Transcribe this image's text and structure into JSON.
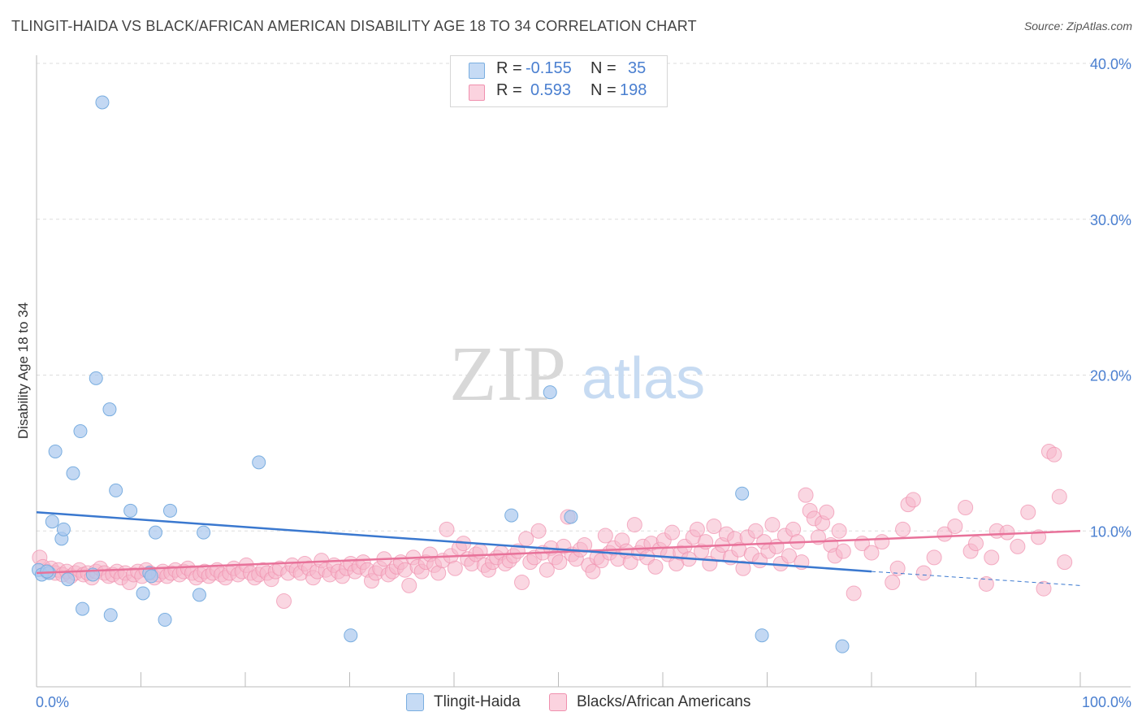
{
  "header": {
    "title": "TLINGIT-HAIDA VS BLACK/AFRICAN AMERICAN DISABILITY AGE 18 TO 34 CORRELATION CHART",
    "source": "Source: ZipAtlas.com"
  },
  "legend": {
    "rows": [
      {
        "r_label": "R =",
        "r_value": "-0.155",
        "n_label": "N =",
        "n_value": "35"
      },
      {
        "r_label": "R =",
        "r_value": "0.593",
        "n_label": "N =",
        "n_value": "198"
      }
    ]
  },
  "bottom_legend": {
    "series1": "Tlingit-Haida",
    "series2": "Blacks/African Americans"
  },
  "watermark": {
    "zip": "ZIP",
    "atlas": "atlas"
  },
  "colors": {
    "blue_fill": "#a9c8ee",
    "blue_stroke": "#7aaee0",
    "blue_line": "#3a78cf",
    "pink_fill": "#f6b7ca",
    "pink_stroke": "#f090ae",
    "pink_line": "#e8729a",
    "value_text": "#4a7fd0",
    "axis_text": "#4a7fd0"
  },
  "chart_data": {
    "type": "scatter",
    "title": "TLINGIT-HAIDA VS BLACK/AFRICAN AMERICAN DISABILITY AGE 18 TO 34 CORRELATION CHART",
    "ylabel": "Disability Age 18 to 34",
    "xlabel": "",
    "xlim": [
      0,
      100
    ],
    "ylim": [
      0,
      40
    ],
    "x_tick_labels": [
      "0.0%",
      "100.0%"
    ],
    "y_tick_labels": [
      "10.0%",
      "20.0%",
      "30.0%",
      "40.0%"
    ],
    "y_ticks": [
      10,
      20,
      30,
      40
    ],
    "grid": true,
    "series": [
      {
        "name": "Tlingit-Haida",
        "r": -0.155,
        "n": 35,
        "trend": {
          "x0": 0,
          "y0": 11.2,
          "x1": 80,
          "y1": 7.4,
          "dash_to_x": 100,
          "dash_to_y": 6.5
        },
        "points": [
          [
            0.2,
            7.5
          ],
          [
            0.5,
            7.2
          ],
          [
            1.2,
            7.3
          ],
          [
            1.5,
            10.6
          ],
          [
            1.8,
            15.1
          ],
          [
            2.4,
            9.5
          ],
          [
            2.6,
            10.1
          ],
          [
            3.0,
            6.9
          ],
          [
            3.5,
            13.7
          ],
          [
            4.2,
            16.4
          ],
          [
            4.4,
            5.0
          ],
          [
            5.4,
            7.2
          ],
          [
            5.7,
            19.8
          ],
          [
            6.3,
            37.5
          ],
          [
            7.0,
            17.8
          ],
          [
            7.1,
            4.6
          ],
          [
            7.6,
            12.6
          ],
          [
            9.0,
            11.3
          ],
          [
            10.2,
            6.0
          ],
          [
            10.8,
            7.3
          ],
          [
            11.0,
            7.1
          ],
          [
            11.4,
            9.9
          ],
          [
            12.3,
            4.3
          ],
          [
            12.8,
            11.3
          ],
          [
            15.6,
            5.9
          ],
          [
            16.0,
            9.9
          ],
          [
            21.3,
            14.4
          ],
          [
            30.1,
            3.3
          ],
          [
            45.5,
            11.0
          ],
          [
            49.2,
            18.9
          ],
          [
            51.2,
            10.9
          ],
          [
            67.6,
            12.4
          ],
          [
            69.5,
            3.3
          ],
          [
            77.2,
            2.6
          ],
          [
            1.0,
            7.4
          ]
        ]
      },
      {
        "name": "Blacks/African Americans",
        "r": 0.593,
        "n": 198,
        "trend": {
          "x0": 0,
          "y0": 7.3,
          "x1": 100,
          "y1": 10.0
        },
        "points": [
          [
            0.3,
            8.3
          ],
          [
            0.6,
            7.7
          ],
          [
            1.0,
            7.4
          ],
          [
            1.4,
            7.6
          ],
          [
            1.8,
            7.3
          ],
          [
            2.1,
            7.5
          ],
          [
            2.5,
            7.2
          ],
          [
            2.9,
            7.4
          ],
          [
            3.3,
            7.1
          ],
          [
            3.7,
            7.3
          ],
          [
            4.1,
            7.5
          ],
          [
            4.5,
            7.2
          ],
          [
            4.9,
            7.3
          ],
          [
            5.3,
            7.0
          ],
          [
            5.7,
            7.4
          ],
          [
            6.1,
            7.6
          ],
          [
            6.5,
            7.3
          ],
          [
            6.9,
            7.1
          ],
          [
            7.3,
            7.2
          ],
          [
            7.7,
            7.4
          ],
          [
            8.1,
            7.0
          ],
          [
            8.5,
            7.3
          ],
          [
            8.9,
            6.7
          ],
          [
            9.3,
            7.2
          ],
          [
            9.7,
            7.4
          ],
          [
            10.1,
            7.1
          ],
          [
            10.5,
            7.5
          ],
          [
            10.9,
            7.3
          ],
          [
            11.3,
            7.0
          ],
          [
            11.7,
            7.2
          ],
          [
            12.1,
            7.4
          ],
          [
            12.5,
            7.1
          ],
          [
            12.9,
            7.3
          ],
          [
            13.3,
            7.5
          ],
          [
            13.7,
            7.2
          ],
          [
            14.1,
            7.4
          ],
          [
            14.5,
            7.6
          ],
          [
            14.9,
            7.3
          ],
          [
            15.3,
            7.0
          ],
          [
            15.7,
            7.2
          ],
          [
            16.1,
            7.4
          ],
          [
            16.5,
            7.1
          ],
          [
            16.9,
            7.3
          ],
          [
            17.3,
            7.5
          ],
          [
            17.7,
            7.2
          ],
          [
            18.1,
            7.0
          ],
          [
            18.5,
            7.3
          ],
          [
            18.9,
            7.6
          ],
          [
            19.3,
            7.2
          ],
          [
            19.7,
            7.4
          ],
          [
            20.1,
            7.8
          ],
          [
            20.5,
            7.3
          ],
          [
            20.9,
            7.0
          ],
          [
            21.3,
            7.2
          ],
          [
            21.7,
            7.5
          ],
          [
            22.1,
            7.3
          ],
          [
            22.5,
            6.9
          ],
          [
            22.9,
            7.4
          ],
          [
            23.3,
            7.6
          ],
          [
            23.7,
            5.5
          ],
          [
            24.1,
            7.3
          ],
          [
            24.5,
            7.8
          ],
          [
            24.9,
            7.5
          ],
          [
            25.3,
            7.3
          ],
          [
            25.7,
            7.9
          ],
          [
            26.1,
            7.6
          ],
          [
            26.5,
            7.0
          ],
          [
            26.9,
            7.4
          ],
          [
            27.3,
            8.1
          ],
          [
            27.7,
            7.5
          ],
          [
            28.1,
            7.2
          ],
          [
            28.5,
            7.8
          ],
          [
            28.9,
            7.4
          ],
          [
            29.3,
            7.1
          ],
          [
            29.7,
            7.6
          ],
          [
            30.1,
            7.9
          ],
          [
            30.5,
            7.4
          ],
          [
            30.9,
            7.7
          ],
          [
            31.3,
            8.0
          ],
          [
            31.7,
            7.5
          ],
          [
            32.1,
            6.8
          ],
          [
            32.5,
            7.3
          ],
          [
            32.9,
            7.6
          ],
          [
            33.3,
            8.2
          ],
          [
            33.7,
            7.2
          ],
          [
            34.1,
            7.4
          ],
          [
            34.5,
            7.7
          ],
          [
            34.9,
            8.0
          ],
          [
            35.3,
            7.5
          ],
          [
            35.7,
            6.5
          ],
          [
            36.1,
            8.3
          ],
          [
            36.5,
            7.7
          ],
          [
            36.9,
            7.4
          ],
          [
            37.3,
            8.0
          ],
          [
            37.7,
            8.5
          ],
          [
            38.1,
            7.8
          ],
          [
            38.5,
            7.3
          ],
          [
            38.9,
            8.1
          ],
          [
            39.3,
            10.1
          ],
          [
            39.7,
            8.4
          ],
          [
            40.1,
            7.6
          ],
          [
            40.5,
            8.9
          ],
          [
            40.9,
            9.2
          ],
          [
            41.3,
            8.2
          ],
          [
            41.7,
            7.9
          ],
          [
            42.1,
            8.5
          ],
          [
            42.5,
            8.7
          ],
          [
            42.9,
            7.8
          ],
          [
            43.3,
            7.5
          ],
          [
            43.7,
            8.0
          ],
          [
            44.1,
            8.3
          ],
          [
            44.5,
            8.6
          ],
          [
            44.9,
            7.9
          ],
          [
            45.3,
            8.1
          ],
          [
            45.7,
            8.4
          ],
          [
            46.1,
            8.7
          ],
          [
            46.5,
            6.7
          ],
          [
            46.9,
            9.5
          ],
          [
            47.3,
            8.0
          ],
          [
            47.7,
            8.3
          ],
          [
            48.1,
            10.0
          ],
          [
            48.5,
            8.6
          ],
          [
            48.9,
            7.5
          ],
          [
            49.3,
            8.9
          ],
          [
            49.7,
            8.3
          ],
          [
            50.1,
            8.0
          ],
          [
            50.5,
            9.0
          ],
          [
            50.9,
            10.9
          ],
          [
            51.3,
            8.5
          ],
          [
            51.7,
            8.2
          ],
          [
            52.1,
            8.8
          ],
          [
            52.5,
            9.1
          ],
          [
            52.9,
            7.8
          ],
          [
            53.3,
            7.4
          ],
          [
            53.7,
            8.3
          ],
          [
            54.1,
            8.1
          ],
          [
            54.5,
            9.7
          ],
          [
            54.9,
            8.6
          ],
          [
            55.3,
            8.9
          ],
          [
            55.7,
            8.2
          ],
          [
            56.1,
            9.4
          ],
          [
            56.5,
            8.7
          ],
          [
            56.9,
            8.0
          ],
          [
            57.3,
            10.4
          ],
          [
            57.7,
            8.6
          ],
          [
            58.1,
            9.0
          ],
          [
            58.5,
            8.3
          ],
          [
            58.9,
            9.2
          ],
          [
            59.3,
            7.7
          ],
          [
            59.7,
            8.8
          ],
          [
            60.1,
            9.4
          ],
          [
            60.5,
            8.5
          ],
          [
            60.9,
            9.9
          ],
          [
            61.3,
            7.9
          ],
          [
            61.7,
            8.6
          ],
          [
            62.1,
            9.0
          ],
          [
            62.5,
            8.2
          ],
          [
            62.9,
            9.6
          ],
          [
            63.3,
            10.1
          ],
          [
            63.7,
            8.7
          ],
          [
            64.1,
            9.3
          ],
          [
            64.5,
            7.9
          ],
          [
            64.9,
            10.3
          ],
          [
            65.3,
            8.5
          ],
          [
            65.7,
            9.1
          ],
          [
            66.1,
            9.8
          ],
          [
            66.5,
            8.3
          ],
          [
            66.9,
            9.5
          ],
          [
            67.3,
            8.8
          ],
          [
            67.7,
            7.6
          ],
          [
            68.1,
            9.6
          ],
          [
            68.5,
            8.5
          ],
          [
            68.9,
            10.0
          ],
          [
            69.3,
            8.1
          ],
          [
            69.7,
            9.3
          ],
          [
            70.1,
            8.7
          ],
          [
            70.5,
            10.4
          ],
          [
            70.9,
            9.0
          ],
          [
            71.3,
            7.9
          ],
          [
            71.7,
            9.7
          ],
          [
            72.1,
            8.4
          ],
          [
            72.5,
            10.1
          ],
          [
            72.9,
            9.3
          ],
          [
            73.3,
            8.0
          ],
          [
            73.7,
            12.3
          ],
          [
            74.1,
            11.3
          ],
          [
            74.5,
            10.8
          ],
          [
            74.9,
            9.6
          ],
          [
            75.3,
            10.5
          ],
          [
            75.7,
            11.2
          ],
          [
            76.1,
            9.1
          ],
          [
            76.5,
            8.4
          ],
          [
            76.9,
            10.0
          ],
          [
            77.3,
            8.7
          ],
          [
            78.3,
            6.0
          ],
          [
            79.1,
            9.2
          ],
          [
            80.0,
            8.6
          ],
          [
            81.0,
            9.3
          ],
          [
            82.0,
            6.7
          ],
          [
            82.5,
            7.6
          ],
          [
            83.0,
            10.1
          ],
          [
            83.5,
            11.7
          ],
          [
            84.0,
            12.0
          ],
          [
            85.0,
            7.3
          ],
          [
            86.0,
            8.3
          ],
          [
            87.0,
            9.8
          ],
          [
            88.0,
            10.3
          ],
          [
            89.0,
            11.5
          ],
          [
            89.5,
            8.7
          ],
          [
            90.0,
            9.2
          ],
          [
            91.0,
            6.6
          ],
          [
            91.5,
            8.3
          ],
          [
            92.0,
            10.0
          ],
          [
            93.0,
            9.9
          ],
          [
            94.0,
            9.0
          ],
          [
            95.0,
            11.2
          ],
          [
            96.0,
            9.6
          ],
          [
            96.5,
            6.3
          ],
          [
            97.0,
            15.1
          ],
          [
            97.5,
            14.9
          ],
          [
            98.0,
            12.2
          ],
          [
            98.5,
            8.0
          ]
        ]
      }
    ]
  }
}
